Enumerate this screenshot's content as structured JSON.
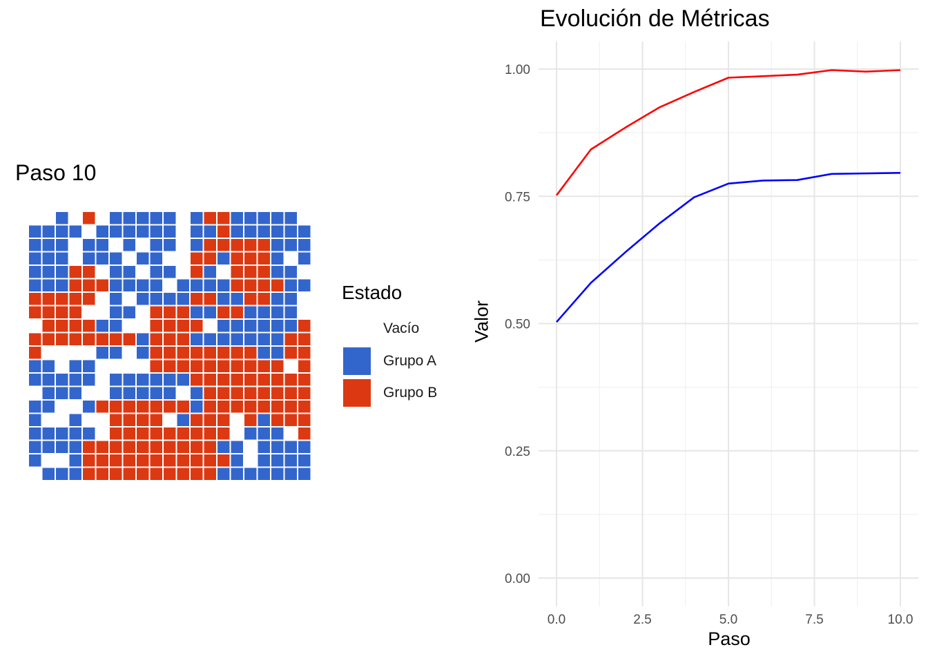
{
  "grid_panel": {
    "title": "Paso 10",
    "legend_title": "Estado",
    "legend": [
      {
        "label": "Vacío",
        "color": "#ffffff"
      },
      {
        "label": "Grupo A",
        "color": "#3366cc"
      },
      {
        "label": "Grupo B",
        "color": "#dc3912"
      }
    ]
  },
  "chart_data": [
    {
      "type": "heatmap",
      "title": "Paso 10",
      "legend_title": "Estado",
      "categories": [
        "Vacío",
        "Grupo A",
        "Grupo B"
      ],
      "colors": {
        "Vacío": "#ffffff",
        "Grupo A": "#3366cc",
        "Grupo B": "#dc3912"
      },
      "encoding": {
        ".": "Vacío",
        "A": "Grupo A",
        "B": "Grupo B"
      },
      "rows": [
        "..A.B.AAAAA.ABBAAAAA.",
        "AAAA.AAAAAA.AABAAAAAA",
        "AAA.AA.A.AA.ABBBBBAAA",
        "AAA.AAA.AA..BBABBBA.A",
        "AAABB.AA.AA.BA.BBBAA.",
        "AAABBBAAAA.AAAABBBBAA",
        "BBBBB.A.AAAABBAABBAA.",
        "BBBB..AA.BBBAABBAAAA.",
        ".BBBBAA..BBBB.AAAAAAB",
        "BBBBBBBBABBBAAAAAAABB",
        "B....AA.ABBBBBBBBAABB",
        "AA.AA....BBBBBBBBBB.B",
        "AAAAA.AAAAAABBBBBBBBB",
        ".AAA..AAAAA.ABBBBBBBB",
        "AA..ABBBBBBBABBBBBBBB",
        "A..A..BBBB.ABBB.BABBB",
        "AAAAA.BBBBBBBBB.AAA.B",
        "AAAABBBBBBBBBBAA.AAAA",
        "A..ABBBBBBBBBBBA.AAAA",
        ".AAABBBBBBBBBBAAAAAAA"
      ]
    },
    {
      "type": "line",
      "title": "Evolución de Métricas",
      "xlabel": "Paso",
      "ylabel": "Valor",
      "xlim": [
        0,
        10
      ],
      "ylim": [
        0,
        1
      ],
      "x_ticks": [
        "0.0",
        "2.5",
        "5.0",
        "7.5",
        "10.0"
      ],
      "y_ticks": [
        "0.00",
        "0.25",
        "0.50",
        "0.75",
        "1.00"
      ],
      "grid": true,
      "x": [
        0,
        1,
        2,
        3,
        4,
        5,
        6,
        7,
        8,
        9,
        10
      ],
      "series": [
        {
          "color": "#ff0000",
          "values": [
            0.752,
            0.842,
            0.885,
            0.925,
            0.955,
            0.983,
            0.986,
            0.989,
            0.998,
            0.995,
            0.998
          ]
        },
        {
          "color": "#0000ff",
          "values": [
            0.503,
            0.58,
            0.64,
            0.697,
            0.748,
            0.775,
            0.781,
            0.782,
            0.794,
            0.795,
            0.796
          ]
        }
      ]
    }
  ]
}
